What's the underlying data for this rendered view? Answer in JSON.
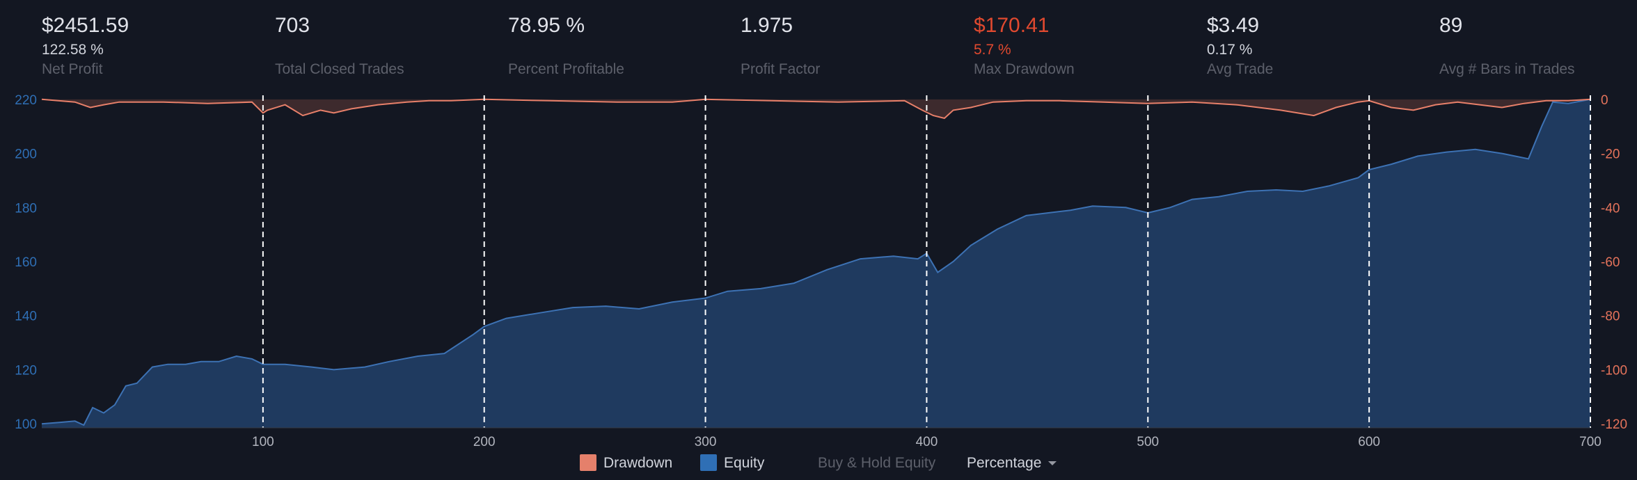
{
  "stats": [
    {
      "value": "$2451.59",
      "pct": "122.58 %",
      "label": "Net Profit"
    },
    {
      "value": "703",
      "pct": "",
      "label": "Total Closed Trades"
    },
    {
      "value": "78.95 %",
      "pct": "",
      "label": "Percent Profitable"
    },
    {
      "value": "1.975",
      "pct": "",
      "label": "Profit Factor"
    },
    {
      "value": "$170.41",
      "pct": "5.7 %",
      "label": "Max Drawdown"
    },
    {
      "value": "$3.49",
      "pct": "0.17 %",
      "label": "Avg Trade"
    },
    {
      "value": "89",
      "pct": "",
      "label": "Avg # Bars in Trades"
    }
  ],
  "legend": {
    "drawdown_label": "Drawdown",
    "equity_label": "Equity",
    "buy_hold_label": "Buy & Hold Equity",
    "mode_label": "Percentage"
  },
  "colors": {
    "equity_line": "#3d72b4",
    "equity_fill": "#1f3a5f",
    "drawdown_line": "#e8806a",
    "drawdown_fill": "#3d2a2d",
    "negative": "#e0492f",
    "left_axis": "#2f6fb5",
    "right_axis": "#e5735b"
  },
  "chart_data": {
    "type": "area",
    "x_ticks": [
      100,
      200,
      300,
      400,
      500,
      600,
      700
    ],
    "xlim": [
      0,
      700
    ],
    "left_axis": {
      "ticks": [
        100,
        120,
        140,
        160,
        180,
        200,
        220
      ],
      "ylim": [
        98.5,
        221.5
      ]
    },
    "right_axis": {
      "ticks": [
        0,
        -20,
        -40,
        -60,
        -80,
        -100,
        -120
      ],
      "ylim": [
        -121.5,
        1.5
      ]
    },
    "vertical_markers": [
      100,
      200,
      300,
      400,
      500,
      600,
      700
    ],
    "series": [
      {
        "name": "Equity",
        "x": [
          0,
          8,
          15,
          19,
          23,
          28,
          33,
          38,
          43,
          50,
          57,
          65,
          72,
          80,
          88,
          95,
          100,
          110,
          122,
          132,
          146,
          157,
          170,
          182,
          195,
          200,
          210,
          225,
          240,
          255,
          270,
          285,
          300,
          310,
          325,
          340,
          355,
          370,
          385,
          396,
          400,
          405,
          412,
          420,
          432,
          445,
          455,
          465,
          475,
          490,
          500,
          510,
          520,
          532,
          545,
          558,
          570,
          582,
          595,
          600,
          610,
          622,
          635,
          648,
          660,
          672,
          678,
          683,
          690,
          700
        ],
        "values": [
          100,
          100.5,
          101,
          99.5,
          106,
          104,
          107,
          114,
          115,
          121,
          122,
          122,
          123,
          123,
          125,
          124,
          122,
          122,
          121,
          120,
          121,
          123,
          125,
          126,
          133,
          136,
          139,
          141,
          143,
          143.5,
          142.5,
          145,
          146.5,
          149,
          150,
          152,
          157,
          161,
          162,
          161,
          163,
          156,
          160,
          166,
          172,
          177,
          178,
          179,
          180.5,
          180,
          178,
          180,
          183,
          184,
          186,
          186.5,
          186,
          188,
          191,
          194,
          196,
          199,
          200.5,
          201.5,
          200,
          198,
          210,
          219,
          218.5,
          220
        ]
      },
      {
        "name": "Drawdown",
        "x": [
          0,
          15,
          22,
          28,
          35,
          55,
          75,
          95,
          100,
          102,
          110,
          118,
          126,
          132,
          140,
          152,
          165,
          175,
          185,
          200,
          230,
          260,
          285,
          300,
          330,
          360,
          390,
          398,
          403,
          408,
          412,
          420,
          430,
          445,
          460,
          480,
          500,
          520,
          540,
          560,
          575,
          585,
          595,
          600,
          610,
          620,
          630,
          640,
          650,
          660,
          670,
          680,
          690,
          700
        ],
        "values": [
          0,
          -1,
          -3,
          -2,
          -1,
          -1,
          -1.5,
          -1,
          -5,
          -4,
          -2,
          -6,
          -4,
          -5,
          -3.5,
          -2,
          -1,
          -0.5,
          -0.5,
          0,
          -0.5,
          -1,
          -1,
          0,
          -0.5,
          -1,
          -0.5,
          -4,
          -6,
          -7,
          -4,
          -3,
          -1,
          -0.5,
          -0.5,
          -1,
          -1.5,
          -1,
          -2,
          -4,
          -6,
          -3,
          -1,
          -0.5,
          -3,
          -4,
          -2,
          -1,
          -2,
          -3,
          -1.5,
          -0.5,
          -0.5,
          0
        ]
      }
    ],
    "legend_position": "bottom-center"
  }
}
